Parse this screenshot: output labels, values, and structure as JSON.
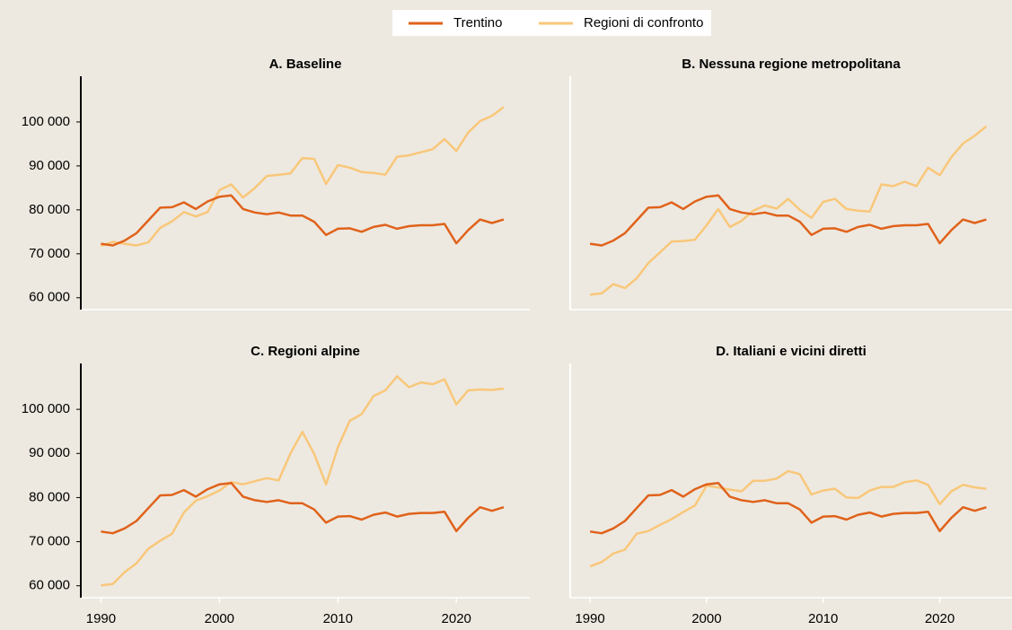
{
  "chart_data": [
    {
      "type": "line",
      "title": "A. Baseline",
      "x": [
        1990,
        1991,
        1992,
        1993,
        1994,
        1995,
        1996,
        1997,
        1998,
        1999,
        2000,
        2001,
        2002,
        2003,
        2004,
        2005,
        2006,
        2007,
        2008,
        2009,
        2010,
        2011,
        2012,
        2013,
        2014,
        2015,
        2016,
        2017,
        2018,
        2019,
        2020,
        2021,
        2022,
        2023,
        2024
      ],
      "xlim": [
        1988.3,
        2026.2
      ],
      "ylim": [
        57300,
        110400
      ],
      "yticks": [
        {
          "value": 60000,
          "label": "60 000"
        },
        {
          "value": 70000,
          "label": "70 000"
        },
        {
          "value": 80000,
          "label": "80 000"
        },
        {
          "value": 90000,
          "label": "90 000"
        },
        {
          "value": 100000,
          "label": "100 000"
        }
      ],
      "series": [
        {
          "name": "Trentino",
          "color": "#e0621b",
          "values": [
            72300,
            71900,
            73000,
            74700,
            77600,
            80500,
            80600,
            81700,
            80200,
            81900,
            83000,
            83300,
            80200,
            79400,
            79000,
            79400,
            78700,
            78700,
            77300,
            74300,
            75700,
            75800,
            75000,
            76100,
            76600,
            75700,
            76300,
            76500,
            76500,
            76800,
            72400,
            75400,
            77800,
            77000,
            77800
          ]
        },
        {
          "name": "Regioni di confronto",
          "color": "#f9c77a",
          "values": [
            71800,
            72700,
            72300,
            71900,
            72600,
            75900,
            77400,
            79500,
            78500,
            79500,
            84500,
            85800,
            82800,
            85000,
            87700,
            88000,
            88300,
            91800,
            91600,
            85900,
            90200,
            89600,
            88600,
            88400,
            88000,
            92100,
            92400,
            93100,
            93800,
            96100,
            93400,
            97600,
            100200,
            101400,
            103400
          ]
        }
      ]
    },
    {
      "type": "line",
      "title": "B. Nessuna regione metropolitana",
      "x": [
        1990,
        1991,
        1992,
        1993,
        1994,
        1995,
        1996,
        1997,
        1998,
        1999,
        2000,
        2001,
        2002,
        2003,
        2004,
        2005,
        2006,
        2007,
        2008,
        2009,
        2010,
        2011,
        2012,
        2013,
        2014,
        2015,
        2016,
        2017,
        2018,
        2019,
        2020,
        2021,
        2022,
        2023,
        2024
      ],
      "xlim": [
        1988.3,
        2026.2
      ],
      "ylim": [
        57300,
        110400
      ],
      "series": [
        {
          "name": "Trentino",
          "color": "#e0621b",
          "values": [
            72300,
            71900,
            73000,
            74700,
            77600,
            80500,
            80600,
            81700,
            80200,
            81900,
            83000,
            83300,
            80200,
            79400,
            79000,
            79400,
            78700,
            78700,
            77300,
            74300,
            75700,
            75800,
            75000,
            76100,
            76600,
            75700,
            76300,
            76500,
            76500,
            76800,
            72400,
            75400,
            77800,
            77000,
            77800
          ]
        },
        {
          "name": "Regioni di confronto",
          "color": "#f9c77a",
          "values": [
            60700,
            61000,
            63100,
            62200,
            64400,
            67900,
            70300,
            72800,
            72900,
            73200,
            76500,
            80200,
            76100,
            77500,
            79800,
            81000,
            80300,
            82500,
            80000,
            78200,
            81800,
            82500,
            80200,
            79800,
            79600,
            85800,
            85400,
            86400,
            85400,
            89600,
            87900,
            92000,
            95100,
            96900,
            99000
          ]
        }
      ]
    },
    {
      "type": "line",
      "title": "C. Regioni alpine",
      "x": [
        1990,
        1991,
        1992,
        1993,
        1994,
        1995,
        1996,
        1997,
        1998,
        1999,
        2000,
        2001,
        2002,
        2003,
        2004,
        2005,
        2006,
        2007,
        2008,
        2009,
        2010,
        2011,
        2012,
        2013,
        2014,
        2015,
        2016,
        2017,
        2018,
        2019,
        2020,
        2021,
        2022,
        2023,
        2024
      ],
      "xlim": [
        1988.3,
        2026.2
      ],
      "ylim": [
        57300,
        110400
      ],
      "xticks": [
        1990,
        2000,
        2010,
        2020
      ],
      "yticks": [
        {
          "value": 60000,
          "label": "60 000"
        },
        {
          "value": 70000,
          "label": "70 000"
        },
        {
          "value": 80000,
          "label": "80 000"
        },
        {
          "value": 90000,
          "label": "90 000"
        },
        {
          "value": 100000,
          "label": "100 000"
        }
      ],
      "series": [
        {
          "name": "Trentino",
          "color": "#e0621b",
          "values": [
            72300,
            71900,
            73000,
            74700,
            77600,
            80500,
            80600,
            81700,
            80200,
            81900,
            83000,
            83300,
            80200,
            79400,
            79000,
            79400,
            78700,
            78700,
            77300,
            74300,
            75700,
            75800,
            75000,
            76100,
            76600,
            75700,
            76300,
            76500,
            76500,
            76800,
            72400,
            75400,
            77800,
            77000,
            77800
          ]
        },
        {
          "name": "Regioni di confronto",
          "color": "#f9c77a",
          "values": [
            60100,
            60400,
            63100,
            65100,
            68400,
            70200,
            71800,
            76600,
            79300,
            80300,
            81600,
            83500,
            83000,
            83700,
            84400,
            83900,
            90000,
            94900,
            89900,
            83000,
            91400,
            97400,
            98900,
            103000,
            104300,
            107500,
            105000,
            106100,
            105700,
            106800,
            101100,
            104300,
            104500,
            104400,
            104700
          ]
        }
      ]
    },
    {
      "type": "line",
      "title": "D. Italiani e vicini diretti",
      "x": [
        1990,
        1991,
        1992,
        1993,
        1994,
        1995,
        1996,
        1997,
        1998,
        1999,
        2000,
        2001,
        2002,
        2003,
        2004,
        2005,
        2006,
        2007,
        2008,
        2009,
        2010,
        2011,
        2012,
        2013,
        2014,
        2015,
        2016,
        2017,
        2018,
        2019,
        2020,
        2021,
        2022,
        2023,
        2024
      ],
      "xlim": [
        1988.3,
        2026.2
      ],
      "ylim": [
        57300,
        110400
      ],
      "xticks": [
        1990,
        2000,
        2010,
        2020
      ],
      "series": [
        {
          "name": "Trentino",
          "color": "#e0621b",
          "values": [
            72300,
            71900,
            73000,
            74700,
            77600,
            80500,
            80600,
            81700,
            80200,
            81900,
            83000,
            83300,
            80200,
            79400,
            79000,
            79400,
            78700,
            78700,
            77300,
            74300,
            75700,
            75800,
            75000,
            76100,
            76600,
            75700,
            76300,
            76500,
            76500,
            76800,
            72400,
            75400,
            77800,
            77000,
            77800
          ]
        },
        {
          "name": "Regioni di confronto",
          "color": "#f9c77a",
          "values": [
            64400,
            65400,
            67300,
            68200,
            71800,
            72400,
            73800,
            75100,
            76700,
            78200,
            82700,
            82300,
            81800,
            81400,
            83800,
            83800,
            84300,
            86000,
            85300,
            80700,
            81600,
            82000,
            80000,
            79900,
            81600,
            82400,
            82400,
            83500,
            83900,
            82900,
            78500,
            81400,
            82900,
            82300,
            82000
          ]
        }
      ]
    }
  ]
}
